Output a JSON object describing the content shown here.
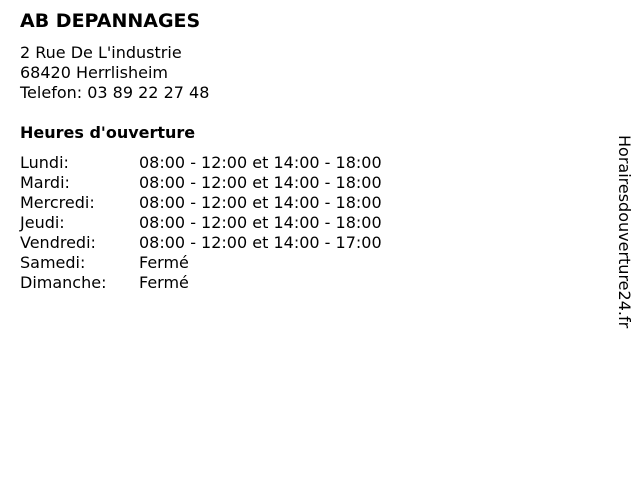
{
  "business": {
    "name": "AB DEPANNAGES",
    "address_line1": "2 Rue De L'industrie",
    "address_line2": "68420 Herrlisheim",
    "phone": "Telefon: 03 89 22 27 48"
  },
  "hours": {
    "heading": "Heures d'ouverture",
    "rows": [
      {
        "day": "Lundi:",
        "time": "08:00 - 12:00 et 14:00 - 18:00"
      },
      {
        "day": "Mardi:",
        "time": "08:00 - 12:00 et 14:00 - 18:00"
      },
      {
        "day": "Mercredi:",
        "time": "08:00 - 12:00 et 14:00 - 18:00"
      },
      {
        "day": "Jeudi:",
        "time": "08:00 - 12:00 et 14:00 - 18:00"
      },
      {
        "day": "Vendredi:",
        "time": "08:00 - 12:00 et 14:00 - 17:00"
      },
      {
        "day": "Samedi:",
        "time": "Fermé"
      },
      {
        "day": "Dimanche:",
        "time": "Fermé"
      }
    ]
  },
  "watermark": "Horairesdouverture24.fr"
}
